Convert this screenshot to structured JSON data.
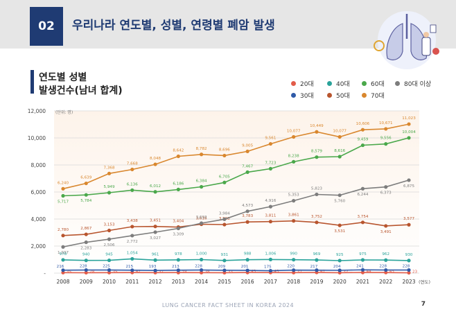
{
  "header": {
    "section_number": "02",
    "title": "우리나라 연도별, 성별, 연령별 폐암 발생"
  },
  "subtitle": {
    "line1": "연도별 성별",
    "line2": "발생건수(남녀 합계)"
  },
  "footer": {
    "text": "LUNG CANCER FACT SHEET IN KOREA 2024",
    "page_number": "7"
  },
  "colors": {
    "brand": "#1f3b73",
    "header_band": "#e6e6e6"
  },
  "chart_data": {
    "type": "line",
    "unit_label": "(단위: 명)",
    "x_unit_label": "(연도)",
    "x": [
      "2008",
      "2009",
      "2010",
      "2011",
      "2012",
      "2013",
      "2014",
      "2015",
      "2016",
      "2017",
      "2018",
      "2019",
      "2020",
      "2021",
      "2022",
      "2023"
    ],
    "ylim": [
      0,
      12000
    ],
    "yticks": [
      0,
      2000,
      4000,
      6000,
      8000,
      10000,
      12000
    ],
    "ytick_labels": [
      "-",
      "2,000",
      "4,000",
      "6,000",
      "8,000",
      "10,000",
      "12,000"
    ],
    "grid": true,
    "legend_position": "top-right",
    "series": [
      {
        "name": "20대",
        "color": "#e25c4a",
        "values": [
          35,
          28,
          35,
          42,
          37,
          39,
          38,
          33,
          45,
          43,
          37,
          47,
          32,
          44,
          43,
          23
        ],
        "labels": [
          "35",
          "28",
          "35",
          "42",
          "37",
          "39",
          "38",
          "33",
          "45",
          "43",
          "37",
          "47",
          "32",
          "44",
          "43",
          "23"
        ]
      },
      {
        "name": "30대",
        "color": "#2f5aa8",
        "values": [
          216,
          228,
          225,
          215,
          193,
          213,
          228,
          209,
          201,
          175,
          220,
          217,
          204,
          241,
          228,
          228
        ],
        "labels": [
          "216",
          "228",
          "225",
          "215",
          "193",
          "213",
          "228",
          "209",
          "201",
          "175",
          "220",
          "217",
          "204",
          "241",
          "228",
          "228"
        ]
      },
      {
        "name": "40대",
        "color": "#2aa39a",
        "values": [
          978,
          940,
          945,
          1054,
          961,
          978,
          1000,
          931,
          988,
          1006,
          990,
          969,
          925,
          975,
          962,
          930
        ],
        "labels": [
          "978",
          "940",
          "945",
          "1,054",
          "961",
          "978",
          "1,000",
          "931",
          "988",
          "1,006",
          "990",
          "969",
          "925",
          "975",
          "962",
          "930"
        ]
      },
      {
        "name": "50대",
        "color": "#b8552e",
        "values": [
          2780,
          2867,
          3153,
          3438,
          3451,
          3404,
          3616,
          3588,
          3783,
          3811,
          3861,
          3752,
          3531,
          3754,
          3491,
          3577
        ],
        "labels": [
          "2,780",
          "2,867",
          "3,153",
          "3,438",
          "3,451",
          "3,404",
          "3,616",
          "3,588",
          "3,783",
          "3,811",
          "3,861",
          "3,752",
          "3,531",
          "3,754",
          "3,491",
          "3,577"
        ]
      },
      {
        "name": "60대",
        "color": "#4aa84b",
        "values": [
          5717,
          5784,
          5949,
          6136,
          6012,
          6186,
          6384,
          6705,
          7467,
          7723,
          8238,
          8579,
          8616,
          9459,
          9556,
          10004
        ],
        "labels": [
          "5,717",
          "5,784",
          "5,949",
          "6,136",
          "6,012",
          "6,186",
          "6,384",
          "6,705",
          "7,467",
          "7,723",
          "8,238",
          "8,579",
          "8,616",
          "9,459",
          "9,556",
          "10,004"
        ]
      },
      {
        "name": "70대",
        "color": "#d9872e",
        "values": [
          6240,
          6639,
          7368,
          7668,
          8048,
          8642,
          8782,
          8696,
          9005,
          9561,
          10077,
          10449,
          10077,
          10606,
          10671,
          11023
        ],
        "labels": [
          "6,240",
          "6,639",
          "7,368",
          "7,668",
          "8,048",
          "8,642",
          "8,782",
          "8,696",
          "9,005",
          "9,561",
          "10,077",
          "10,449",
          "10,077",
          "10,606",
          "10,671",
          "11,023"
        ]
      },
      {
        "name": "80대 이상",
        "color": "#7d7d7d",
        "values": [
          1937,
          2283,
          2506,
          2772,
          3027,
          3309,
          3693,
          3984,
          4573,
          4916,
          5353,
          5823,
          5760,
          6244,
          6373,
          6875
        ],
        "labels": [
          "1,937",
          "2,283",
          "2,506",
          "2,772",
          "3,027",
          "3,309",
          "3,693",
          "3,984",
          "4,573",
          "4,916",
          "5,353",
          "5,823",
          "5,760",
          "6,244",
          "6,373",
          "6,875"
        ]
      }
    ]
  }
}
